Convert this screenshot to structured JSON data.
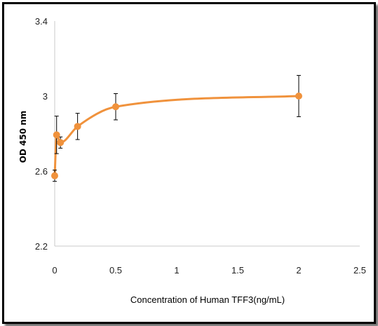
{
  "chart_data": {
    "type": "scatter",
    "title": "",
    "xlabel": "Concentration of Human TFF3(ng/mL)",
    "ylabel": "OD 450 nm",
    "xlim": [
      0,
      2.5
    ],
    "ylim": [
      2.2,
      3.4
    ],
    "x_ticks": [
      "0",
      "0.5",
      "1",
      "1.5",
      "2",
      "2.5"
    ],
    "y_ticks": [
      "2.2",
      "2.6",
      "3",
      "3.4"
    ],
    "grid": false,
    "legend": "none",
    "series": [
      {
        "color": "#f0923c",
        "smooth_line": true,
        "points": [
          {
            "x": 0,
            "y": 2.575,
            "err": 0.03
          },
          {
            "x": 0.0156,
            "y": 2.793,
            "err": 0.1
          },
          {
            "x": 0.047,
            "y": 2.752,
            "err": 0.03
          },
          {
            "x": 0.1875,
            "y": 2.838,
            "err": 0.07
          },
          {
            "x": 0.5,
            "y": 2.943,
            "err": 0.07
          },
          {
            "x": 2,
            "y": 3.0,
            "err": 0.11
          }
        ]
      }
    ]
  }
}
